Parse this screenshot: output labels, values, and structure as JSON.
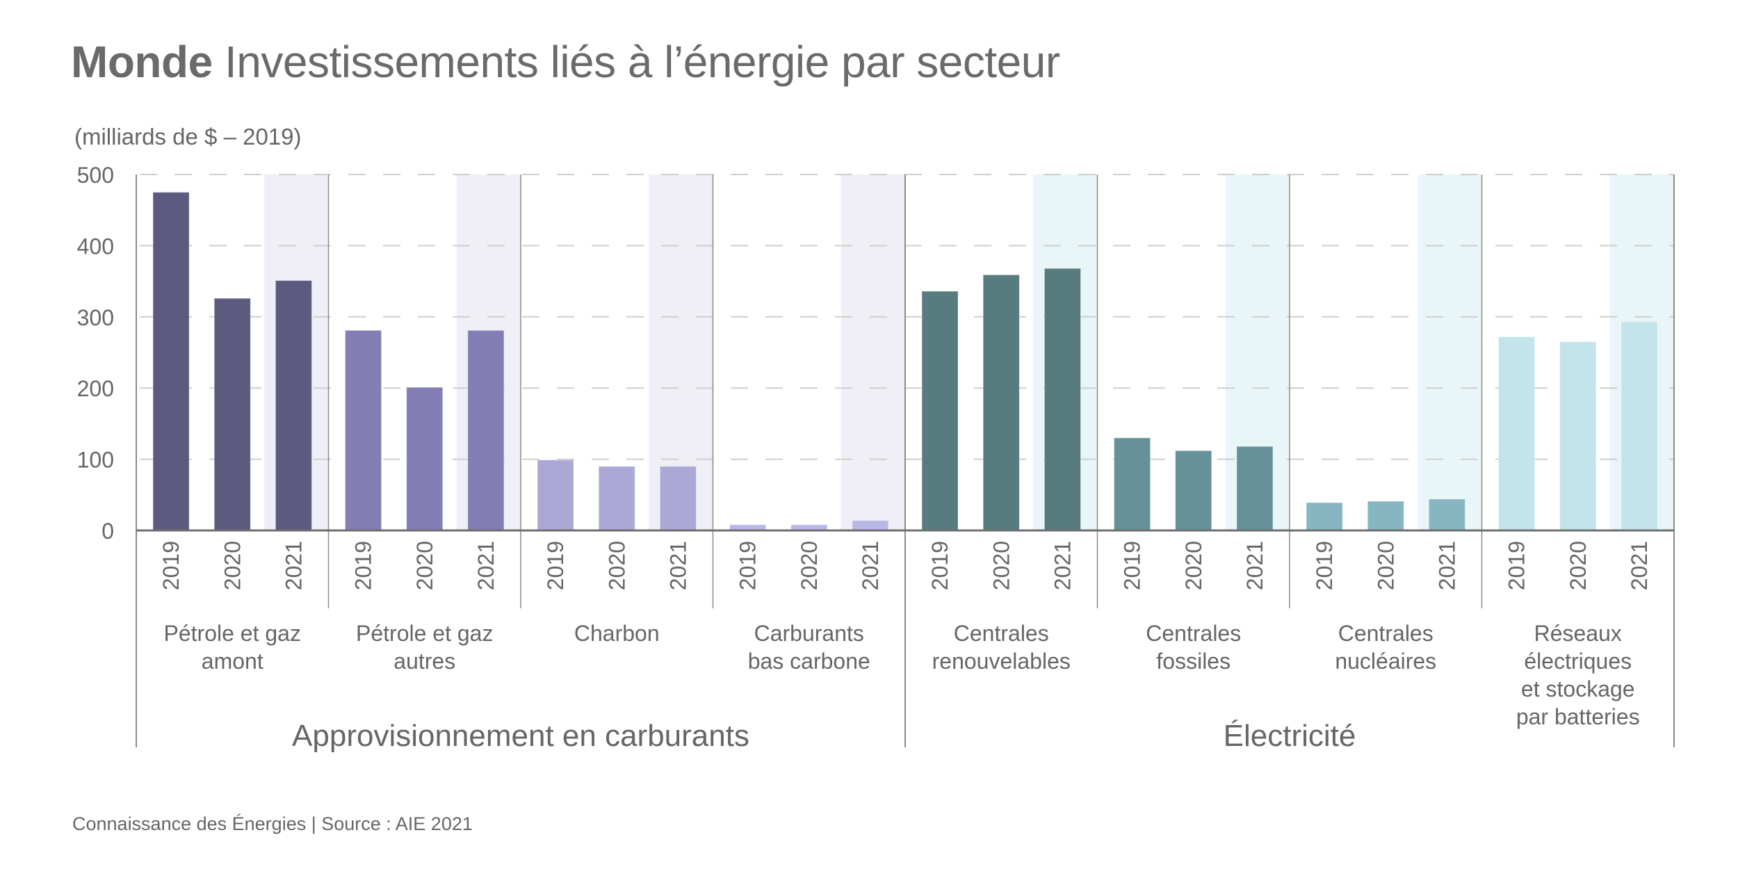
{
  "header": {
    "title_bold": "Monde",
    "title_rest": "Investissements liés à l’énergie par secteur",
    "unit": "(milliards de $ – 2019)"
  },
  "footer": {
    "source": "Connaissance des Énergies | Source : AIE 2021"
  },
  "chart_data": {
    "type": "bar",
    "title": "Monde Investissements liés à l’énergie par secteur",
    "ylabel": "(milliards de $ – 2019)",
    "xlabel": "",
    "ylim": [
      0,
      500
    ],
    "yticks": [
      0,
      100,
      200,
      300,
      400,
      500
    ],
    "grid": true,
    "years": [
      "2019",
      "2020",
      "2021"
    ],
    "highlighted_year": "2021",
    "supergroups": [
      {
        "label": "Approvisionnement en carburants",
        "band_color": "#efeff5",
        "group_count": 4
      },
      {
        "label": "Électricité",
        "band_color": "#e8f6f7",
        "group_count": 4
      }
    ],
    "groups": [
      {
        "label_lines": [
          "Pétrole et gaz",
          "amont"
        ],
        "color": "#5d5a80",
        "values": [
          475,
          326,
          351
        ]
      },
      {
        "label_lines": [
          "Pétrole et gaz",
          "autres"
        ],
        "color": "#837fb4",
        "values": [
          281,
          201,
          281
        ]
      },
      {
        "label_lines": [
          "Charbon"
        ],
        "color": "#aba8d6",
        "values": [
          99,
          90,
          90
        ]
      },
      {
        "label_lines": [
          "Carburants",
          "bas carbone"
        ],
        "color": "#b8b8e6",
        "values": [
          8,
          8,
          14
        ]
      },
      {
        "label_lines": [
          "Centrales",
          "renouvelables"
        ],
        "color": "#577b7f",
        "values": [
          336,
          359,
          368
        ]
      },
      {
        "label_lines": [
          "Centrales",
          "fossiles"
        ],
        "color": "#669199",
        "values": [
          130,
          112,
          118
        ]
      },
      {
        "label_lines": [
          "Centrales",
          "nucléaires"
        ],
        "color": "#86b6c2",
        "values": [
          39,
          41,
          44
        ]
      },
      {
        "label_lines": [
          "Réseaux",
          "électriques",
          "et stockage",
          "par batteries"
        ],
        "color": "#c2e4ea",
        "values": [
          272,
          265,
          293
        ]
      }
    ]
  }
}
